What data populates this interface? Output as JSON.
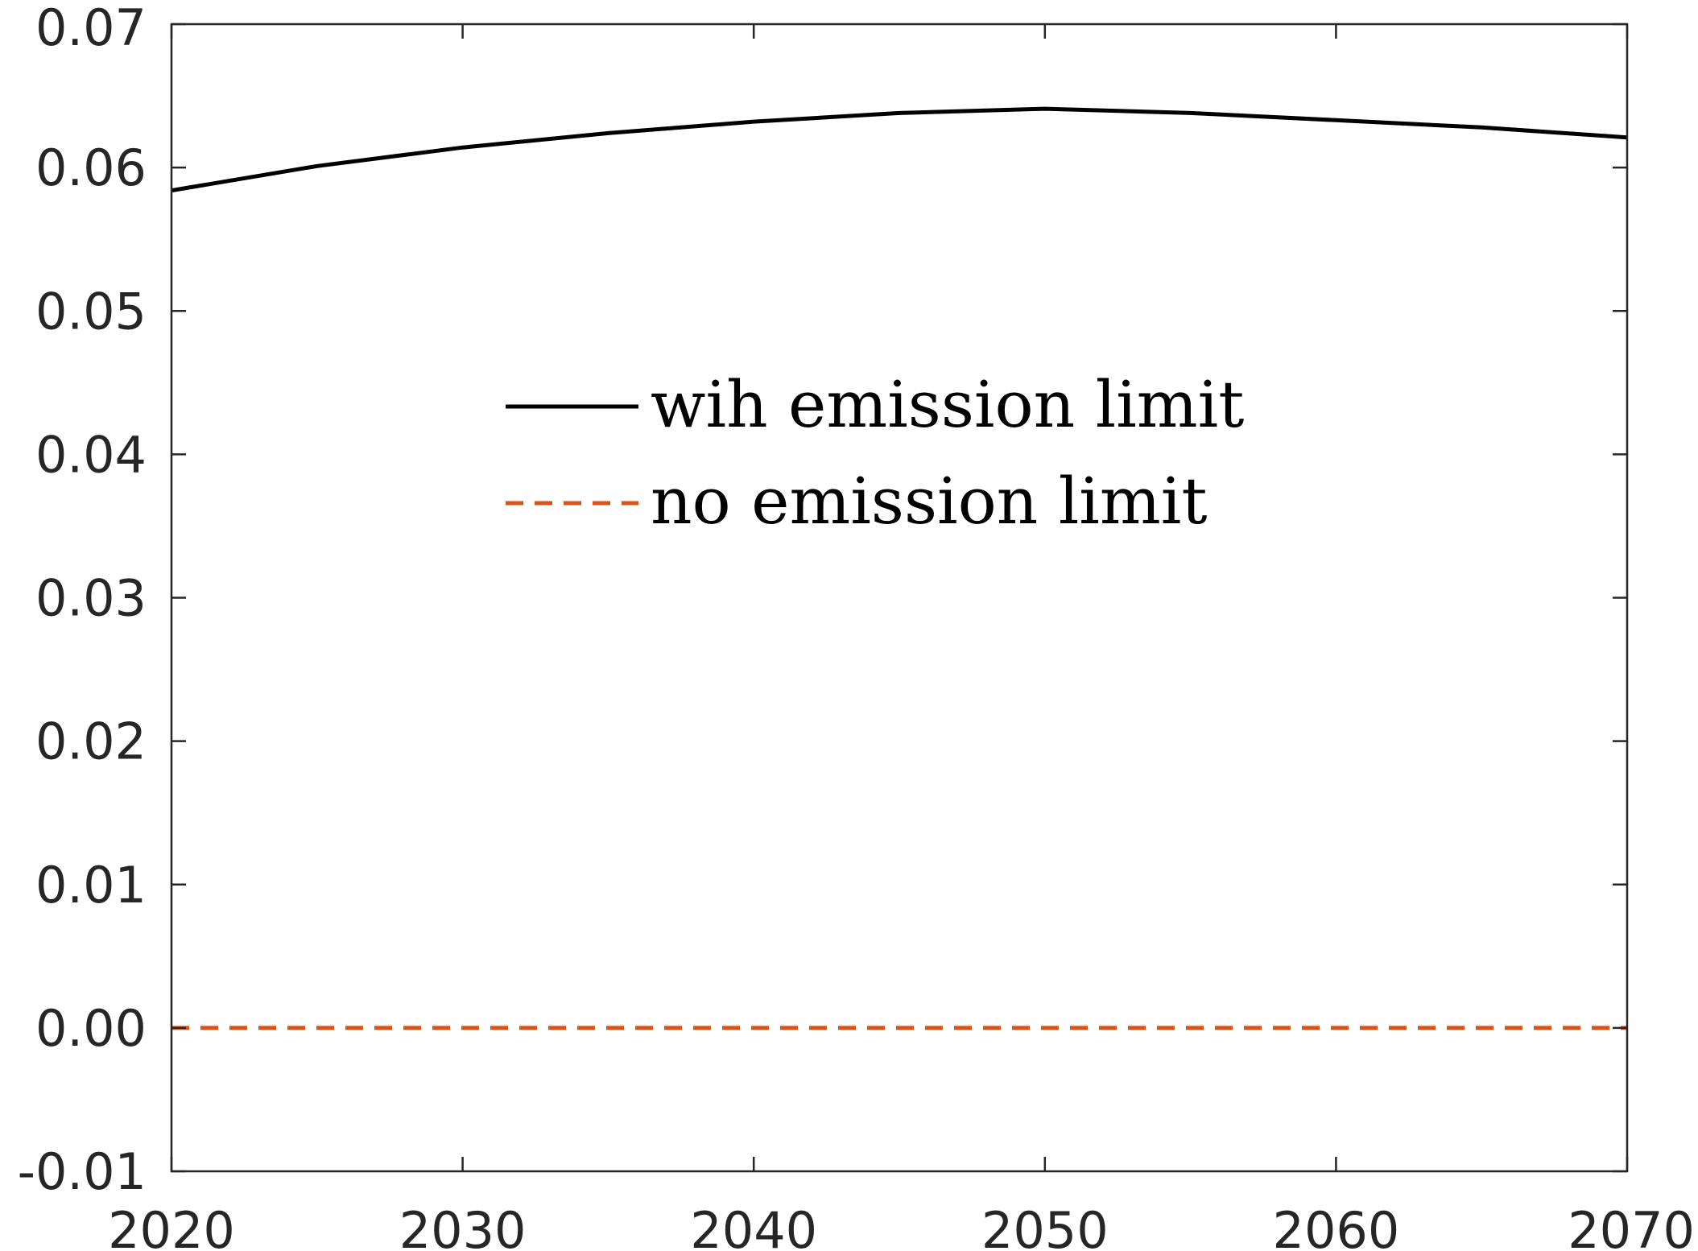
{
  "chart_data": {
    "type": "line",
    "title": "",
    "xlabel": "",
    "ylabel": "",
    "xlim": [
      2020,
      2070
    ],
    "ylim": [
      -0.01,
      0.07
    ],
    "x_ticks": [
      2020,
      2030,
      2040,
      2050,
      2060,
      2070
    ],
    "x_tick_labels": [
      "2020",
      "2030",
      "2040",
      "2050",
      "2060",
      "2070"
    ],
    "y_ticks": [
      -0.01,
      0.0,
      0.01,
      0.02,
      0.03,
      0.04,
      0.05,
      0.06,
      0.07
    ],
    "y_tick_labels": [
      "-0.01",
      "0.00",
      "0.01",
      "0.02",
      "0.03",
      "0.04",
      "0.05",
      "0.06",
      "0.07"
    ],
    "grid": false,
    "legend_position": "center",
    "series": [
      {
        "name": "wih emission limit",
        "style": "solid",
        "color": "#000000",
        "x": [
          2020,
          2025,
          2030,
          2035,
          2040,
          2045,
          2050,
          2055,
          2060,
          2065,
          2070
        ],
        "y": [
          0.0584,
          0.0601,
          0.0614,
          0.0624,
          0.0632,
          0.0638,
          0.0641,
          0.0638,
          0.0633,
          0.0628,
          0.0621
        ]
      },
      {
        "name": "no emission limit",
        "style": "dashed",
        "color": "#D95319",
        "x": [
          2020,
          2030,
          2040,
          2050,
          2060,
          2070
        ],
        "y": [
          0.0,
          0.0,
          0.0,
          0.0,
          0.0,
          0.0
        ]
      }
    ]
  }
}
